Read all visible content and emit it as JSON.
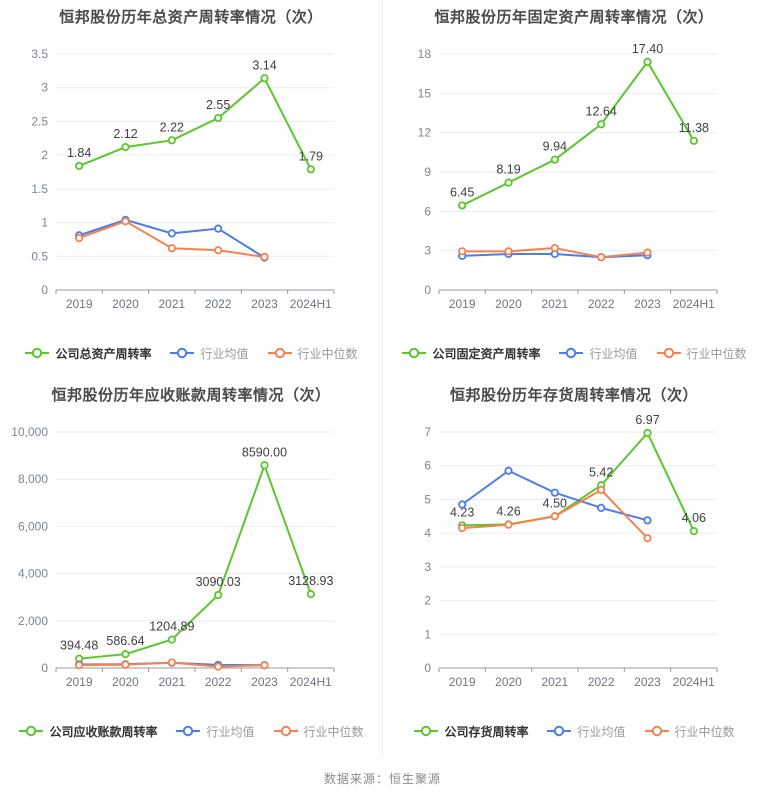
{
  "footer": {
    "text": "数据来源：恒生聚源"
  },
  "colors": {
    "company": "#5bc62e",
    "industry_avg": "#4d7deb",
    "industry_median": "#f5814f",
    "grid": "#e9eef4",
    "axis": "#999999",
    "title": "#4a4a4a"
  },
  "chart_data": [
    {
      "type": "line",
      "title": "恒邦股份历年总资产周转率情况（次）",
      "categories": [
        "2019",
        "2020",
        "2021",
        "2022",
        "2023",
        "2024H1"
      ],
      "xlabel": "",
      "ylabel": "",
      "ylim": [
        0,
        3.5
      ],
      "yticks": [
        0,
        0.5,
        1,
        1.5,
        2,
        2.5,
        3,
        3.5
      ],
      "ytick_labels": [
        "0",
        "0.5",
        "1",
        "1.5",
        "2",
        "2.5",
        "3",
        "3.5"
      ],
      "grid": true,
      "legend_position": "bottom",
      "series": [
        {
          "name": "公司总资产周转率",
          "color": "#5bc62e",
          "show_labels": true,
          "values": [
            1.84,
            2.12,
            2.22,
            2.55,
            3.14,
            1.79
          ],
          "labels": [
            "1.84",
            "2.12",
            "2.22",
            "2.55",
            "3.14",
            "1.79"
          ]
        },
        {
          "name": "行业均值",
          "color": "#4d7deb",
          "show_labels": false,
          "values": [
            0.81,
            1.04,
            0.84,
            0.91,
            0.48,
            null
          ]
        },
        {
          "name": "行业中位数",
          "color": "#f5814f",
          "show_labels": false,
          "values": [
            0.77,
            1.02,
            0.62,
            0.59,
            0.49,
            null
          ]
        }
      ]
    },
    {
      "type": "line",
      "title": "恒邦股份历年固定资产周转率情况（次）",
      "categories": [
        "2019",
        "2020",
        "2021",
        "2022",
        "2023",
        "2024H1"
      ],
      "xlabel": "",
      "ylabel": "",
      "ylim": [
        0,
        18
      ],
      "yticks": [
        0,
        3,
        6,
        9,
        12,
        15,
        18
      ],
      "ytick_labels": [
        "0",
        "3",
        "6",
        "9",
        "12",
        "15",
        "18"
      ],
      "grid": true,
      "legend_position": "bottom",
      "series": [
        {
          "name": "公司固定资产周转率",
          "color": "#5bc62e",
          "show_labels": true,
          "values": [
            6.45,
            8.19,
            9.94,
            12.64,
            17.4,
            11.38
          ],
          "labels": [
            "6.45",
            "8.19",
            "9.94",
            "12.64",
            "17.40",
            "11.38"
          ]
        },
        {
          "name": "行业均值",
          "color": "#4d7deb",
          "show_labels": false,
          "values": [
            2.6,
            2.75,
            2.75,
            2.5,
            2.65,
            null
          ]
        },
        {
          "name": "行业中位数",
          "color": "#f5814f",
          "show_labels": false,
          "values": [
            2.95,
            2.95,
            3.2,
            2.5,
            2.85,
            null
          ]
        }
      ]
    },
    {
      "type": "line",
      "title": "恒邦股份历年应收账款周转率情况（次）",
      "categories": [
        "2019",
        "2020",
        "2021",
        "2022",
        "2023",
        "2024H1"
      ],
      "xlabel": "",
      "ylabel": "",
      "ylim": [
        0,
        10000
      ],
      "yticks": [
        0,
        2000,
        4000,
        6000,
        8000,
        10000
      ],
      "ytick_labels": [
        "0",
        "2,000",
        "4,000",
        "6,000",
        "8,000",
        "10,000"
      ],
      "grid": true,
      "legend_position": "bottom",
      "series": [
        {
          "name": "公司应收账款周转率",
          "color": "#5bc62e",
          "show_labels": true,
          "values": [
            394.48,
            586.64,
            1204.89,
            3090.03,
            8590.0,
            3128.93
          ],
          "labels": [
            "394.48",
            "586.64",
            "1204.89",
            "3090.03",
            "8590.00",
            "3128.93"
          ]
        },
        {
          "name": "行业均值",
          "color": "#4d7deb",
          "show_labels": false,
          "values": [
            150,
            160,
            220,
            130,
            120,
            null
          ]
        },
        {
          "name": "行业中位数",
          "color": "#f5814f",
          "show_labels": false,
          "values": [
            120,
            140,
            230,
            60,
            120,
            null
          ]
        }
      ]
    },
    {
      "type": "line",
      "title": "恒邦股份历年存货周转率情况（次）",
      "categories": [
        "2019",
        "2020",
        "2021",
        "2022",
        "2023",
        "2024H1"
      ],
      "xlabel": "",
      "ylabel": "",
      "ylim": [
        0,
        7
      ],
      "yticks": [
        0,
        1,
        2,
        3,
        4,
        5,
        6,
        7
      ],
      "ytick_labels": [
        "0",
        "1",
        "2",
        "3",
        "4",
        "5",
        "6",
        "7"
      ],
      "grid": true,
      "legend_position": "bottom",
      "series": [
        {
          "name": "公司存货周转率",
          "color": "#5bc62e",
          "show_labels": true,
          "values": [
            4.23,
            4.26,
            4.5,
            5.42,
            6.97,
            4.06
          ],
          "labels": [
            "4.23",
            "4.26",
            "4.50",
            "5.42",
            "6.97",
            "4.06"
          ]
        },
        {
          "name": "行业均值",
          "color": "#4d7deb",
          "show_labels": false,
          "values": [
            4.85,
            5.85,
            5.2,
            4.75,
            4.38,
            null
          ]
        },
        {
          "name": "行业中位数",
          "color": "#f5814f",
          "show_labels": false,
          "values": [
            4.15,
            4.25,
            4.5,
            5.28,
            3.85,
            null
          ]
        }
      ]
    }
  ]
}
